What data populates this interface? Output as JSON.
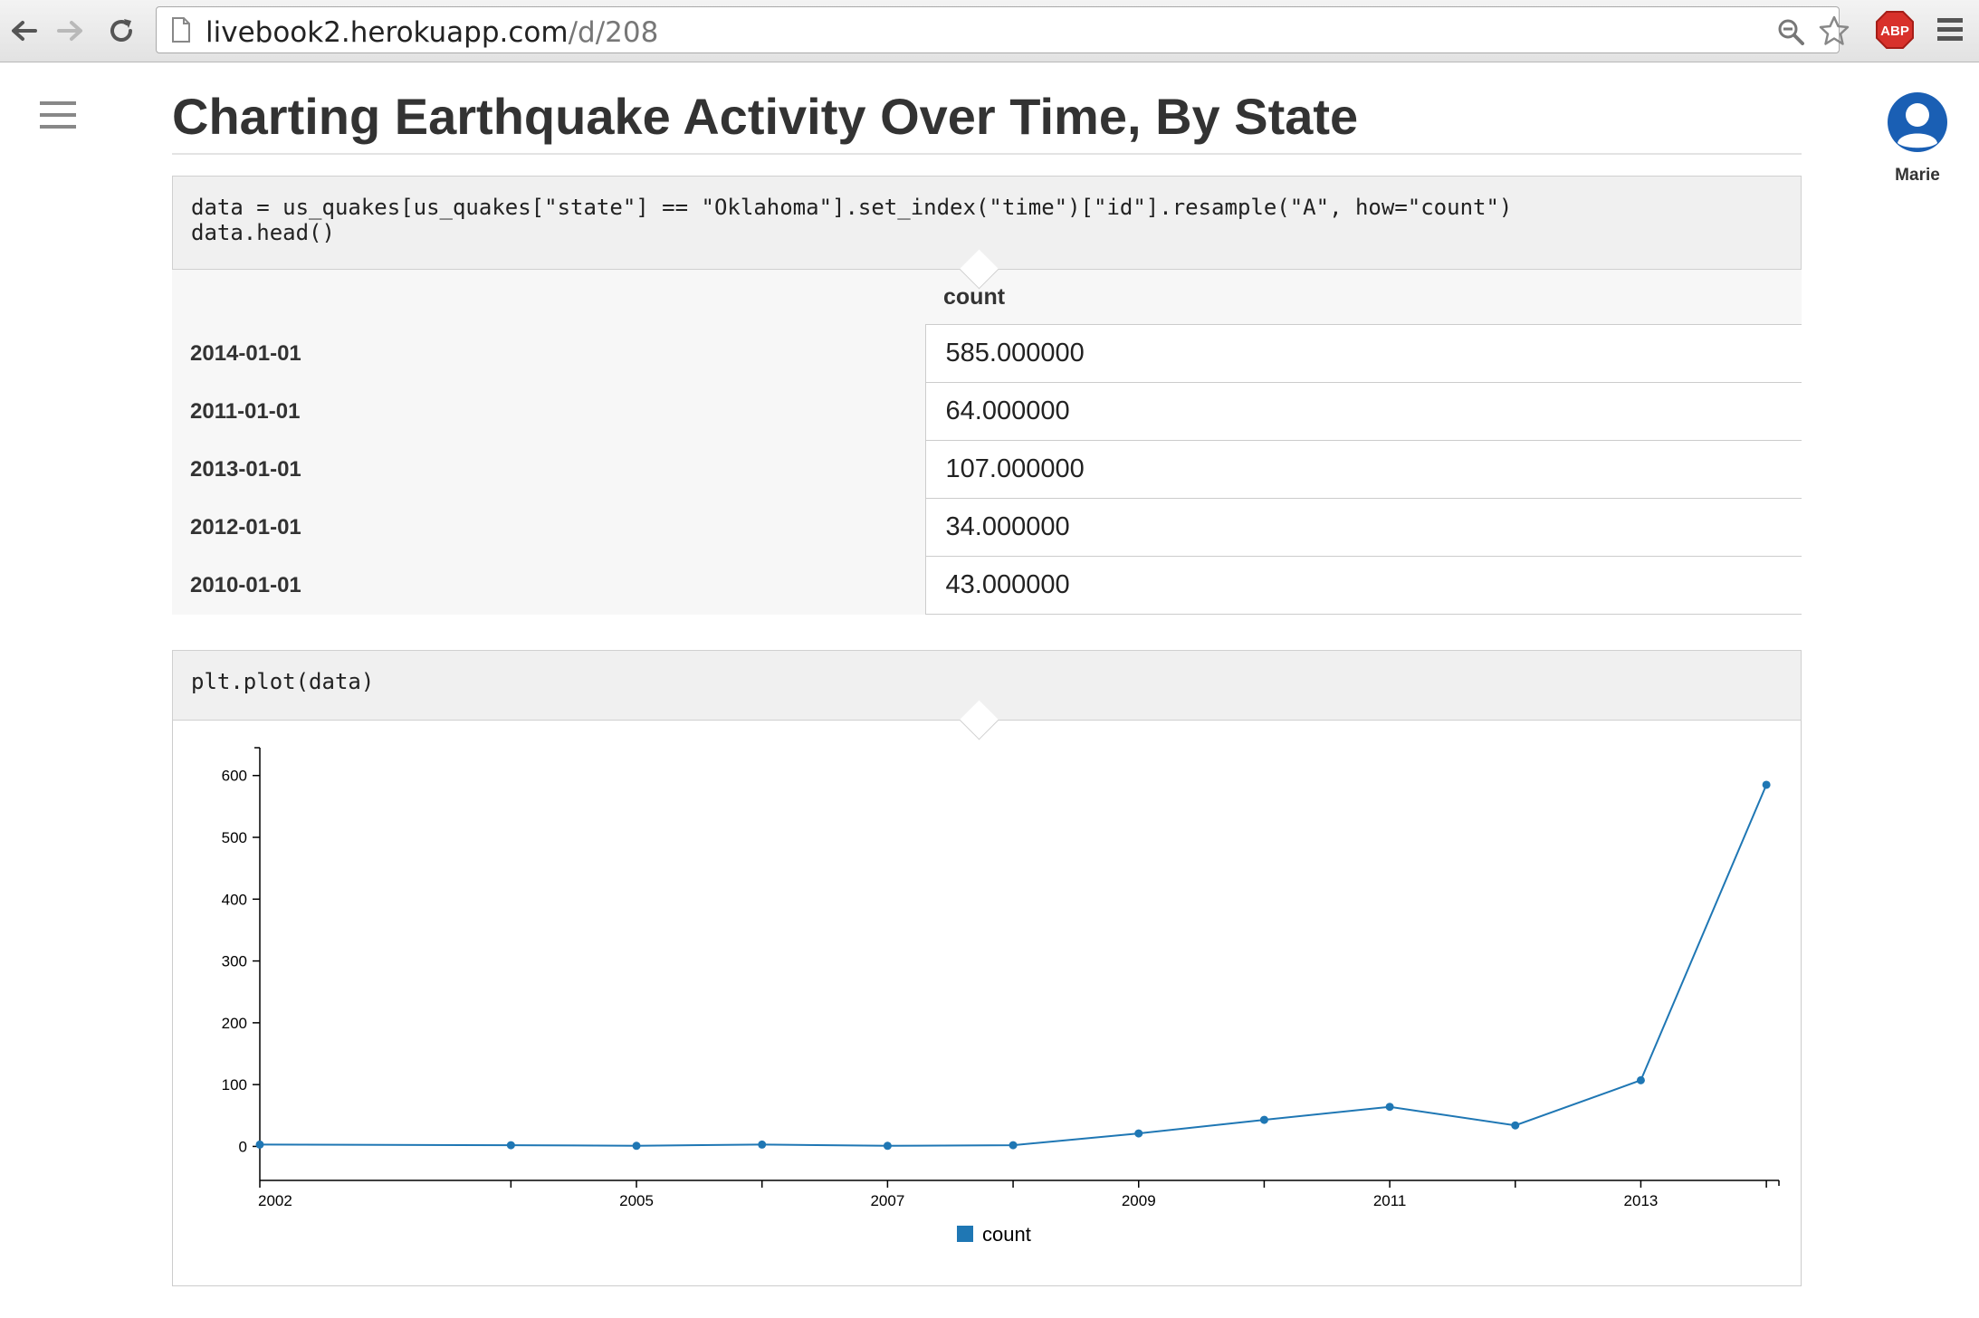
{
  "browser": {
    "url_host": "livebook2.herokuapp.com",
    "url_path": "/d/208",
    "extension_label": "ABP",
    "icons": [
      "back-icon",
      "forward-icon",
      "reload-icon",
      "page-icon",
      "zoom-icon",
      "star-icon",
      "adblock-icon",
      "chrome-menu-icon"
    ]
  },
  "page": {
    "title": "Charting Earthquake Activity Over Time, By State",
    "user_name": "Marie"
  },
  "cells": [
    {
      "code_lines": [
        "data = us_quakes[us_quakes[\"state\"] == \"Oklahoma\"].set_index(\"time\")[\"id\"].resample(\"A\", how=\"count\")",
        "data.head()"
      ],
      "output_table": {
        "column": "count",
        "rows": [
          {
            "index": "2014-01-01",
            "value": "585.000000"
          },
          {
            "index": "2011-01-01",
            "value": "64.000000"
          },
          {
            "index": "2013-01-01",
            "value": "107.000000"
          },
          {
            "index": "2012-01-01",
            "value": "34.000000"
          },
          {
            "index": "2010-01-01",
            "value": "43.000000"
          }
        ]
      }
    },
    {
      "code_lines": [
        "plt.plot(data)"
      ]
    }
  ],
  "chart_data": {
    "type": "line",
    "x": [
      2002,
      2004,
      2005,
      2006,
      2007,
      2008,
      2009,
      2010,
      2011,
      2012,
      2013,
      2014
    ],
    "series": [
      {
        "name": "count",
        "values": [
          3,
          2,
          1,
          3,
          1,
          2,
          21,
          43,
          64,
          34,
          107,
          585
        ],
        "color": "#1f77b4"
      }
    ],
    "x_tick_labels": [
      "2002",
      "2005",
      "2007",
      "2009",
      "2011",
      "2013"
    ],
    "y_ticks": [
      0,
      100,
      200,
      300,
      400,
      500,
      600
    ],
    "xlim": [
      2002,
      2014.1
    ],
    "ylim": [
      -55,
      645
    ],
    "legend_position": "bottom-center",
    "grid": false
  },
  "colors": {
    "line": "#1f77b4",
    "avatar": "#1a5fb4",
    "abp": "#d8312b"
  }
}
